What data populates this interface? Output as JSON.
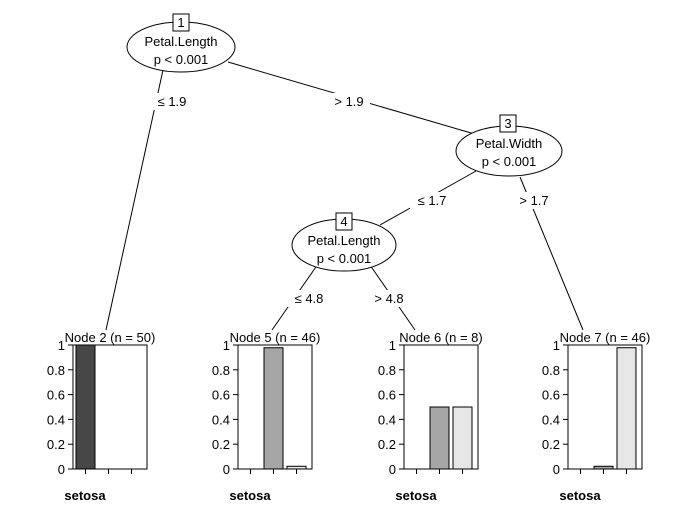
{
  "inner_nodes": [
    {
      "id": "1",
      "variable": "Petal.Length",
      "p": "p < 0.001"
    },
    {
      "id": "3",
      "variable": "Petal.Width",
      "p": "p < 0.001"
    },
    {
      "id": "4",
      "variable": "Petal.Length",
      "p": "p < 0.001"
    }
  ],
  "edge_labels": [
    "≤ 1.9",
    "> 1.9",
    "≤ 1.7",
    "> 1.7",
    "≤ 4.8",
    "> 4.8"
  ],
  "axis_ticks": [
    "1",
    "0.8",
    "0.6",
    "0.4",
    "0.2",
    "0"
  ],
  "class_label": "setosa",
  "colors": {
    "setosa": "#474747",
    "versicolor": "#a6a6a6",
    "virginica": "#e6e6e6"
  },
  "chart_data": [
    {
      "type": "bar",
      "title": "Node 2 (n = 50)",
      "ylim": [
        0,
        1
      ],
      "values": [
        1.0,
        0.0,
        0.0
      ],
      "xlabel": "setosa"
    },
    {
      "type": "bar",
      "title": "Node 5 (n = 46)",
      "ylim": [
        0,
        1
      ],
      "values": [
        0.0,
        0.978,
        0.022
      ],
      "xlabel": "setosa"
    },
    {
      "type": "bar",
      "title": "Node 6 (n = 8)",
      "ylim": [
        0,
        1
      ],
      "values": [
        0.0,
        0.5,
        0.5
      ],
      "xlabel": "setosa"
    },
    {
      "type": "bar",
      "title": "Node 7 (n = 46)",
      "ylim": [
        0,
        1
      ],
      "values": [
        0.0,
        0.022,
        0.978
      ],
      "xlabel": "setosa"
    }
  ]
}
